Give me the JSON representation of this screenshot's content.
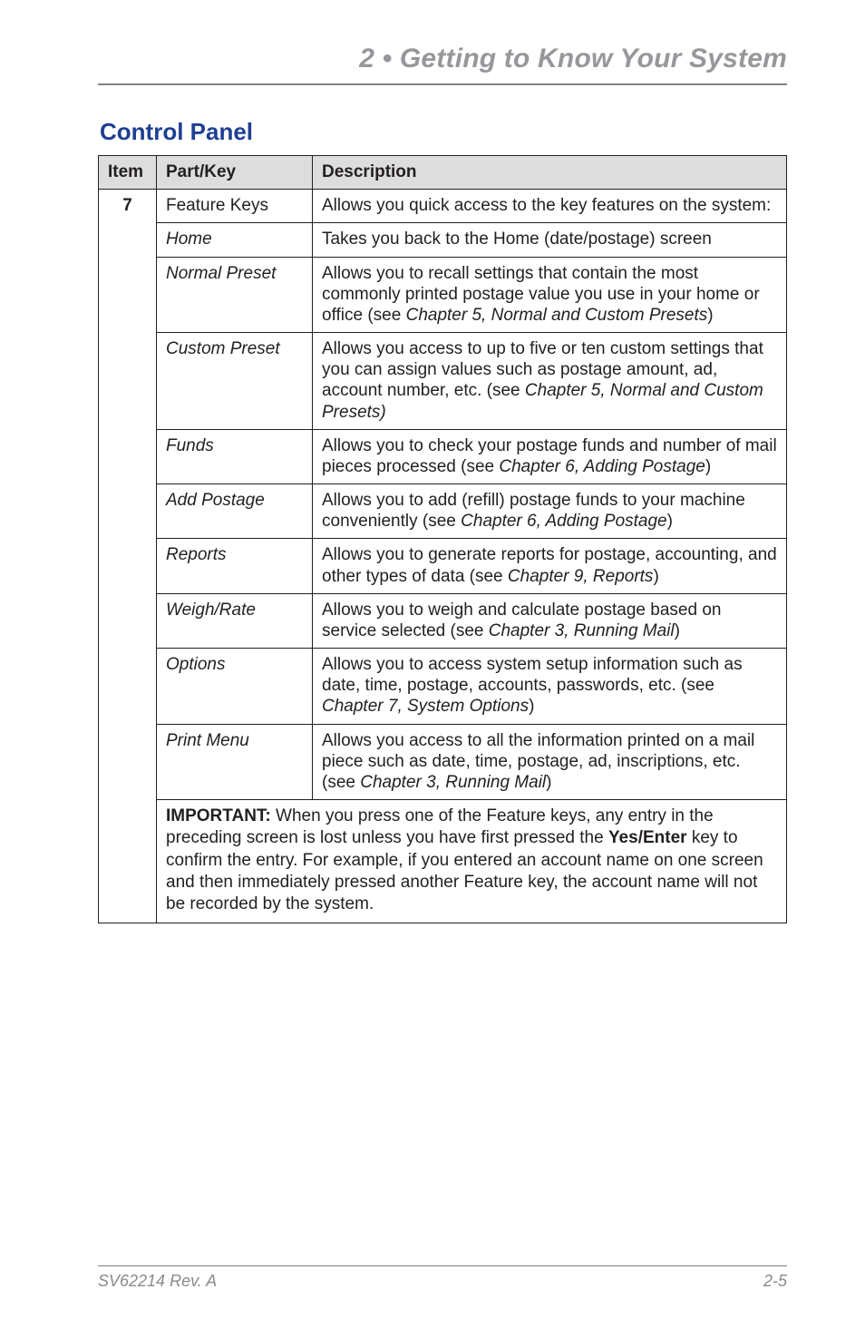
{
  "chapter_title": "2 • Getting to Know Your System",
  "section_heading": "Control Panel",
  "table": {
    "headers": {
      "item": "Item",
      "part": "Part/Key",
      "desc": "Description"
    },
    "item_number": "7",
    "rows": [
      {
        "part": "Feature Keys",
        "italic": false,
        "desc_plain": "Allows you quick access to the key features on the system:"
      },
      {
        "part": "Home",
        "italic": true,
        "desc_plain": "Takes you back to the Home (date/postage) screen"
      },
      {
        "part": "Normal Preset",
        "italic": true,
        "desc_pre": "Allows you to recall settings that contain the most commonly printed postage value you use in your home or office (see ",
        "desc_ital": "Chapter 5, Normal and Custom Presets",
        "desc_post": ")"
      },
      {
        "part": "Custom Preset",
        "italic": true,
        "desc_pre": "Allows you access to up to five or ten custom settings that you can assign values such as postage amount, ad, account number, etc. (see ",
        "desc_ital": "Chapter 5, Normal and Custom Presets)",
        "desc_post": ""
      },
      {
        "part": "Funds",
        "italic": true,
        "desc_pre": "Allows you to check your postage funds and number of mail pieces processed (see ",
        "desc_ital": "Chapter 6, Adding Postage",
        "desc_post": ")"
      },
      {
        "part": "Add Postage",
        "italic": true,
        "desc_pre": "Allows you to add (refill) postage funds to your machine conveniently (see ",
        "desc_ital": "Chapter 6, Adding Postage",
        "desc_post": ")"
      },
      {
        "part": "Reports",
        "italic": true,
        "desc_pre": "Allows you to generate reports for postage, accounting, and other types of data (see ",
        "desc_ital": "Chapter 9, Reports",
        "desc_post": ")"
      },
      {
        "part": "Weigh/Rate",
        "italic": true,
        "desc_pre": "Allows you to weigh and calculate postage based on service selected (see ",
        "desc_ital": "Chapter 3, Running Mail",
        "desc_post": ")"
      },
      {
        "part": "Options",
        "italic": true,
        "desc_pre": "Allows you to access system setup information such as date, time, postage, accounts, passwords, etc. (see ",
        "desc_ital": "Chapter 7, System Options",
        "desc_post": ")"
      },
      {
        "part": "Print Menu",
        "italic": true,
        "desc_pre": "Allows you access to all the information printed on a mail piece such as date, time, postage, ad, inscriptions, etc. (see ",
        "desc_ital": "Chapter 3, Running Mail",
        "desc_post": ")"
      }
    ],
    "important": {
      "label": "IMPORTANT:",
      "text_pre": " When you press one of the Feature keys, any entry in the preceding screen is lost unless you have first pressed the ",
      "bold_mid": "Yes/Enter",
      "text_post": " key to confirm the entry. For example, if you entered an account name on one screen and then immediately pressed another Feature key, the account name will not be recorded by the system."
    }
  },
  "footer": {
    "doc": "SV62214 Rev. A",
    "page": "2-5"
  },
  "colors": {
    "heading_blue": "#1f3f92",
    "chapter_gray": "#96979b",
    "rule_gray": "#808084",
    "text": "#231f20",
    "th_bg": "#dddddd",
    "footer_gray": "#8a8b8f"
  }
}
